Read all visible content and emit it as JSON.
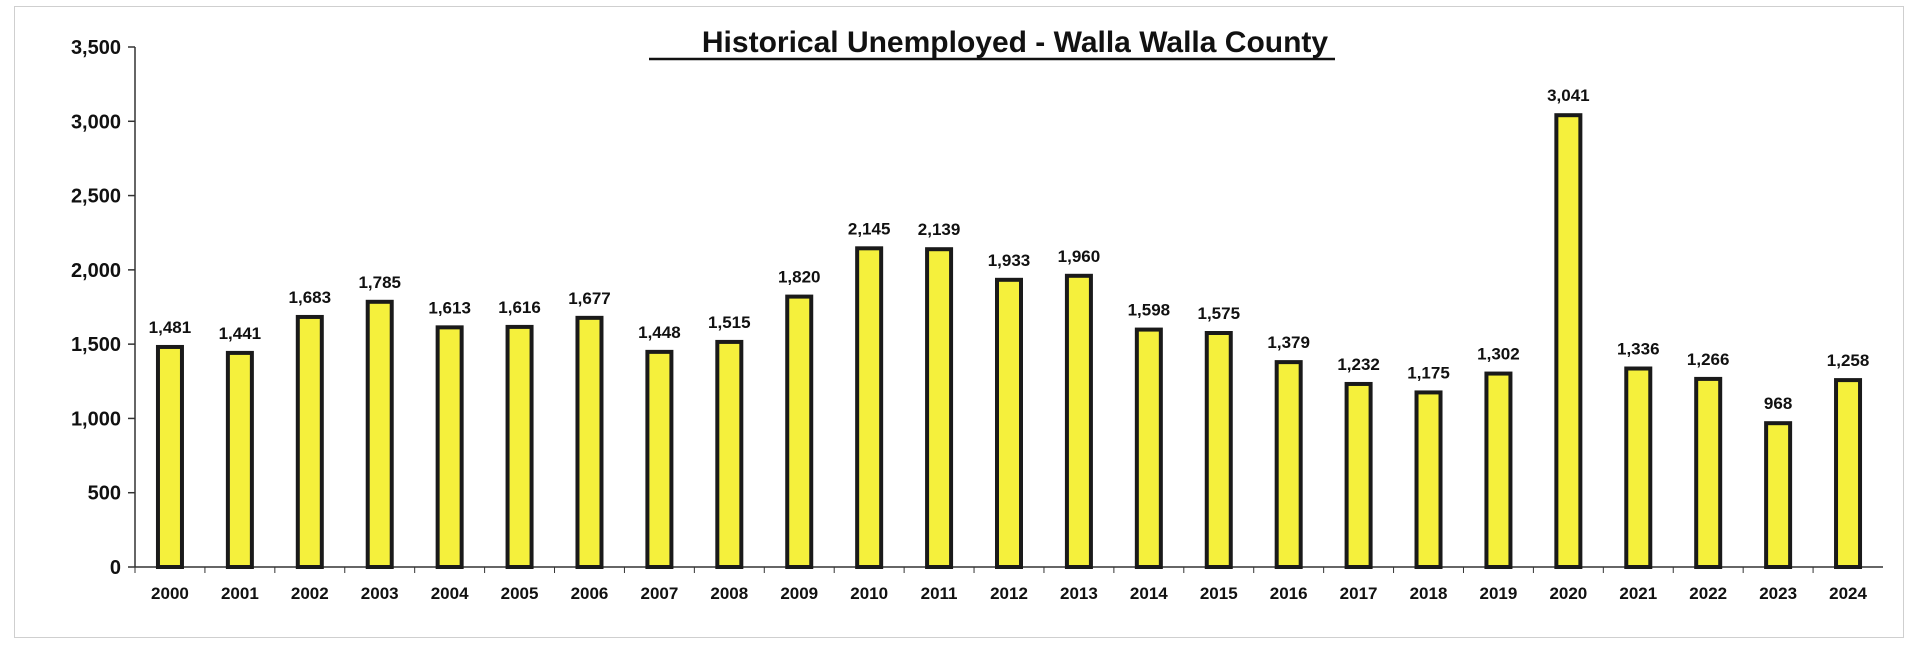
{
  "chart_data": {
    "type": "bar",
    "title": "Historical Unemployed - Walla Walla County",
    "xlabel": "",
    "ylabel": "",
    "categories": [
      "2000",
      "2001",
      "2002",
      "2003",
      "2004",
      "2005",
      "2006",
      "2007",
      "2008",
      "2009",
      "2010",
      "2011",
      "2012",
      "2013",
      "2014",
      "2015",
      "2016",
      "2017",
      "2018",
      "2019",
      "2020",
      "2021",
      "2022",
      "2023",
      "2024"
    ],
    "values": [
      1481,
      1441,
      1683,
      1785,
      1613,
      1616,
      1677,
      1448,
      1515,
      1820,
      2145,
      2139,
      1933,
      1960,
      1598,
      1575,
      1379,
      1232,
      1175,
      1302,
      3041,
      1336,
      1266,
      968,
      1258
    ],
    "data_labels": [
      "1,481",
      "1,441",
      "1,683",
      "1,785",
      "1,613",
      "1,616",
      "1,677",
      "1,448",
      "1,515",
      "1,820",
      "2,145",
      "2,139",
      "1,933",
      "1,960",
      "1,598",
      "1,575",
      "1,379",
      "1,232",
      "1,175",
      "1,302",
      "3,041",
      "1,336",
      "1,266",
      "968",
      "1,258"
    ],
    "ylim": [
      0,
      3500
    ],
    "yticks": [
      0,
      500,
      1000,
      1500,
      2000,
      2500,
      3000,
      3500
    ],
    "ytick_labels": [
      "0",
      "500",
      "1,000",
      "1,500",
      "2,000",
      "2,500",
      "3,000",
      "3,500"
    ],
    "grid": false,
    "legend": "none",
    "colors": {
      "bar_fill": "#f5f03c",
      "bar_edge": "#1a1a1a",
      "axis": "#333333",
      "text": "#111111"
    }
  }
}
